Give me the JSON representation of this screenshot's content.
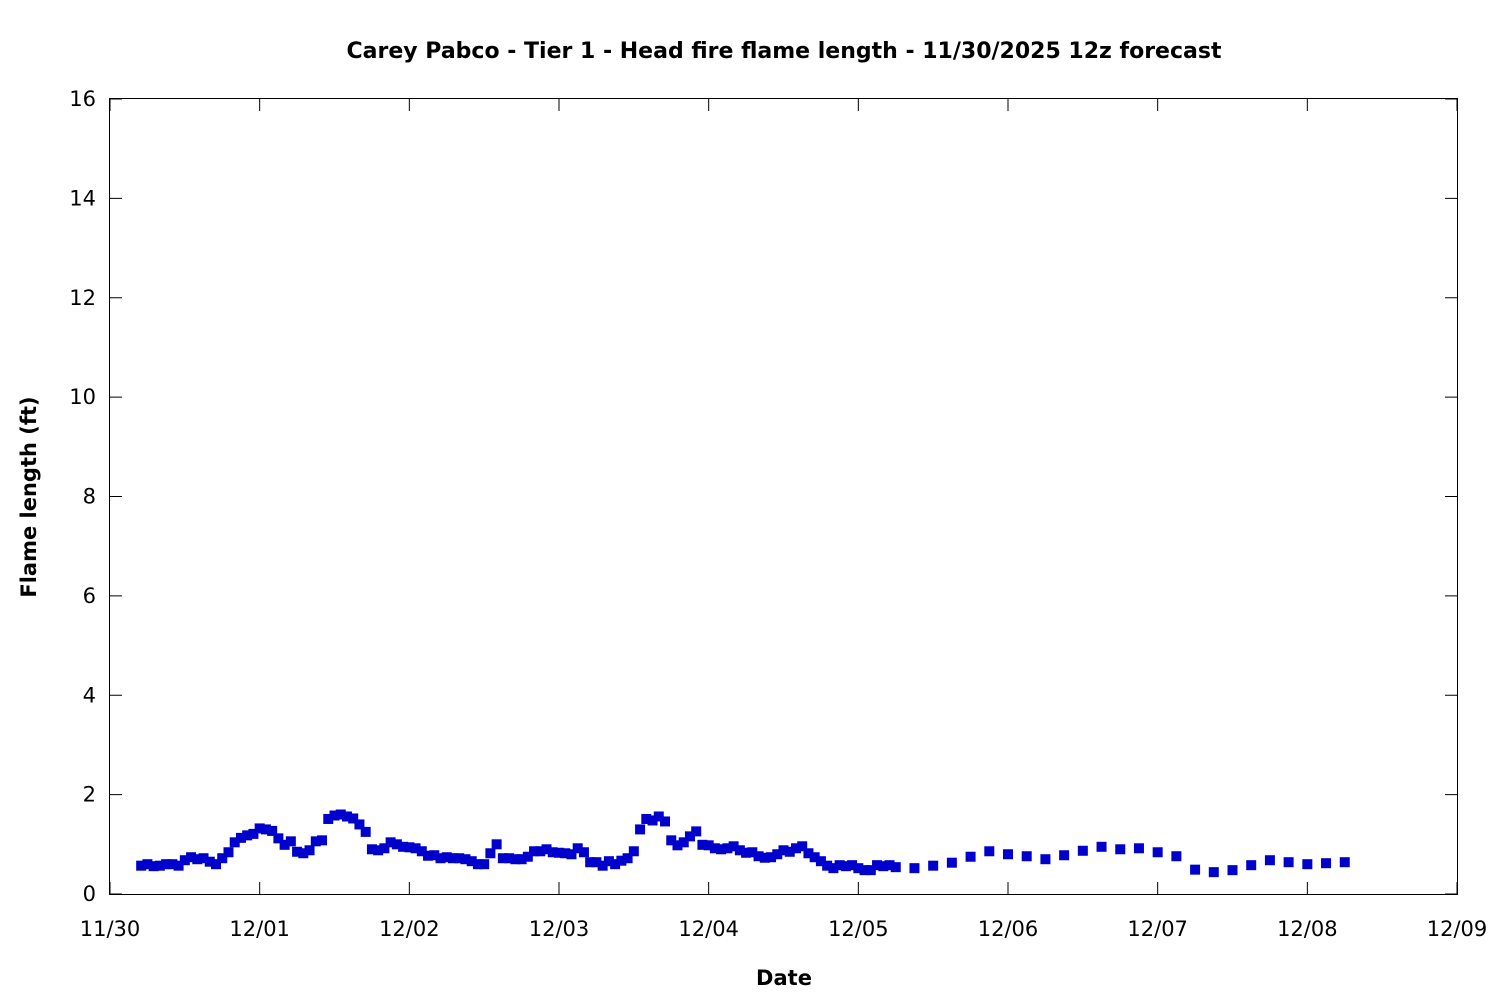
{
  "chart_data": {
    "type": "scatter",
    "title": "Carey Pabco - Tier 1 - Head fire flame length - 11/30/2025 12z forecast",
    "xlabel": "Date",
    "ylabel": "Flame length (ft)",
    "xlim": [
      "2025-11-30T00:00",
      "2025-12-09T00:00"
    ],
    "ylim": [
      0,
      16
    ],
    "x_ticks": [
      "11/30",
      "12/01",
      "12/02",
      "12/03",
      "12/04",
      "12/05",
      "12/06",
      "12/07",
      "12/08",
      "12/09"
    ],
    "y_ticks": [
      "0",
      "2",
      "4",
      "6",
      "8",
      "10",
      "12",
      "14",
      "16"
    ],
    "grid": false,
    "marker_color": "#0000cc",
    "series": [
      {
        "points": [
          [
            "2025-11-30T05:00",
            0.57
          ],
          [
            "2025-11-30T06:00",
            0.6
          ],
          [
            "2025-11-30T07:00",
            0.56
          ],
          [
            "2025-11-30T08:00",
            0.57
          ],
          [
            "2025-11-30T09:00",
            0.6
          ],
          [
            "2025-11-30T10:00",
            0.6
          ],
          [
            "2025-11-30T11:00",
            0.57
          ],
          [
            "2025-11-30T12:00",
            0.68
          ],
          [
            "2025-11-30T13:00",
            0.74
          ],
          [
            "2025-11-30T14:00",
            0.7
          ],
          [
            "2025-11-30T15:00",
            0.72
          ],
          [
            "2025-11-30T16:00",
            0.65
          ],
          [
            "2025-11-30T17:00",
            0.6
          ],
          [
            "2025-11-30T18:00",
            0.72
          ],
          [
            "2025-11-30T19:00",
            0.84
          ],
          [
            "2025-11-30T20:00",
            1.04
          ],
          [
            "2025-11-30T21:00",
            1.13
          ],
          [
            "2025-11-30T22:00",
            1.18
          ],
          [
            "2025-11-30T23:00",
            1.21
          ],
          [
            "2025-12-01T00:00",
            1.32
          ],
          [
            "2025-12-01T01:00",
            1.3
          ],
          [
            "2025-12-01T02:00",
            1.27
          ],
          [
            "2025-12-01T03:00",
            1.12
          ],
          [
            "2025-12-01T04:00",
            0.99
          ],
          [
            "2025-12-01T05:00",
            1.06
          ],
          [
            "2025-12-01T06:00",
            0.85
          ],
          [
            "2025-12-01T07:00",
            0.82
          ],
          [
            "2025-12-01T08:00",
            0.88
          ],
          [
            "2025-12-01T09:00",
            1.06
          ],
          [
            "2025-12-01T10:00",
            1.08
          ],
          [
            "2025-12-01T11:00",
            1.51
          ],
          [
            "2025-12-01T12:00",
            1.58
          ],
          [
            "2025-12-01T13:00",
            1.6
          ],
          [
            "2025-12-01T14:00",
            1.56
          ],
          [
            "2025-12-01T15:00",
            1.52
          ],
          [
            "2025-12-01T16:00",
            1.4
          ],
          [
            "2025-12-01T17:00",
            1.25
          ],
          [
            "2025-12-01T18:00",
            0.9
          ],
          [
            "2025-12-01T19:00",
            0.88
          ],
          [
            "2025-12-01T20:00",
            0.92
          ],
          [
            "2025-12-01T21:00",
            1.04
          ],
          [
            "2025-12-01T22:00",
            1.0
          ],
          [
            "2025-12-01T23:00",
            0.95
          ],
          [
            "2025-12-02T00:00",
            0.94
          ],
          [
            "2025-12-02T01:00",
            0.92
          ],
          [
            "2025-12-02T02:00",
            0.86
          ],
          [
            "2025-12-02T03:00",
            0.77
          ],
          [
            "2025-12-02T04:00",
            0.78
          ],
          [
            "2025-12-02T05:00",
            0.72
          ],
          [
            "2025-12-02T06:00",
            0.74
          ],
          [
            "2025-12-02T07:00",
            0.72
          ],
          [
            "2025-12-02T08:00",
            0.72
          ],
          [
            "2025-12-02T09:00",
            0.7
          ],
          [
            "2025-12-02T10:00",
            0.66
          ],
          [
            "2025-12-02T11:00",
            0.6
          ],
          [
            "2025-12-02T12:00",
            0.6
          ],
          [
            "2025-12-02T13:00",
            0.82
          ],
          [
            "2025-12-02T14:00",
            1.0
          ],
          [
            "2025-12-02T15:00",
            0.72
          ],
          [
            "2025-12-02T16:00",
            0.72
          ],
          [
            "2025-12-02T17:00",
            0.7
          ],
          [
            "2025-12-02T18:00",
            0.7
          ],
          [
            "2025-12-02T19:00",
            0.75
          ],
          [
            "2025-12-02T20:00",
            0.86
          ],
          [
            "2025-12-02T21:00",
            0.86
          ],
          [
            "2025-12-02T22:00",
            0.9
          ],
          [
            "2025-12-02T23:00",
            0.84
          ],
          [
            "2025-12-03T00:00",
            0.83
          ],
          [
            "2025-12-03T01:00",
            0.82
          ],
          [
            "2025-12-03T02:00",
            0.8
          ],
          [
            "2025-12-03T03:00",
            0.92
          ],
          [
            "2025-12-03T04:00",
            0.84
          ],
          [
            "2025-12-03T05:00",
            0.64
          ],
          [
            "2025-12-03T06:00",
            0.64
          ],
          [
            "2025-12-03T07:00",
            0.57
          ],
          [
            "2025-12-03T08:00",
            0.66
          ],
          [
            "2025-12-03T09:00",
            0.6
          ],
          [
            "2025-12-03T10:00",
            0.67
          ],
          [
            "2025-12-03T11:00",
            0.72
          ],
          [
            "2025-12-03T12:00",
            0.86
          ],
          [
            "2025-12-03T13:00",
            1.3
          ],
          [
            "2025-12-03T14:00",
            1.51
          ],
          [
            "2025-12-03T15:00",
            1.48
          ],
          [
            "2025-12-03T16:00",
            1.56
          ],
          [
            "2025-12-03T17:00",
            1.46
          ],
          [
            "2025-12-03T18:00",
            1.08
          ],
          [
            "2025-12-03T19:00",
            0.98
          ],
          [
            "2025-12-03T20:00",
            1.04
          ],
          [
            "2025-12-03T21:00",
            1.16
          ],
          [
            "2025-12-03T22:00",
            1.26
          ],
          [
            "2025-12-03T23:00",
            0.99
          ],
          [
            "2025-12-04T00:00",
            0.98
          ],
          [
            "2025-12-04T01:00",
            0.92
          ],
          [
            "2025-12-04T02:00",
            0.9
          ],
          [
            "2025-12-04T03:00",
            0.92
          ],
          [
            "2025-12-04T04:00",
            0.96
          ],
          [
            "2025-12-04T05:00",
            0.88
          ],
          [
            "2025-12-04T06:00",
            0.83
          ],
          [
            "2025-12-04T07:00",
            0.84
          ],
          [
            "2025-12-04T08:00",
            0.76
          ],
          [
            "2025-12-04T09:00",
            0.73
          ],
          [
            "2025-12-04T10:00",
            0.74
          ],
          [
            "2025-12-04T11:00",
            0.8
          ],
          [
            "2025-12-04T12:00",
            0.88
          ],
          [
            "2025-12-04T13:00",
            0.85
          ],
          [
            "2025-12-04T14:00",
            0.92
          ],
          [
            "2025-12-04T15:00",
            0.96
          ],
          [
            "2025-12-04T16:00",
            0.82
          ],
          [
            "2025-12-04T17:00",
            0.74
          ],
          [
            "2025-12-04T18:00",
            0.66
          ],
          [
            "2025-12-04T19:00",
            0.57
          ],
          [
            "2025-12-04T20:00",
            0.52
          ],
          [
            "2025-12-04T21:00",
            0.58
          ],
          [
            "2025-12-04T22:00",
            0.56
          ],
          [
            "2025-12-04T23:00",
            0.58
          ],
          [
            "2025-12-05T00:00",
            0.52
          ],
          [
            "2025-12-05T01:00",
            0.48
          ],
          [
            "2025-12-05T02:00",
            0.48
          ],
          [
            "2025-12-05T03:00",
            0.58
          ],
          [
            "2025-12-05T04:00",
            0.56
          ],
          [
            "2025-12-05T05:00",
            0.58
          ],
          [
            "2025-12-05T06:00",
            0.54
          ],
          [
            "2025-12-05T09:00",
            0.52
          ],
          [
            "2025-12-05T12:00",
            0.57
          ],
          [
            "2025-12-05T15:00",
            0.63
          ],
          [
            "2025-12-05T18:00",
            0.75
          ],
          [
            "2025-12-05T21:00",
            0.86
          ],
          [
            "2025-12-06T00:00",
            0.8
          ],
          [
            "2025-12-06T03:00",
            0.76
          ],
          [
            "2025-12-06T06:00",
            0.7
          ],
          [
            "2025-12-06T09:00",
            0.78
          ],
          [
            "2025-12-06T12:00",
            0.87
          ],
          [
            "2025-12-06T15:00",
            0.95
          ],
          [
            "2025-12-06T18:00",
            0.9
          ],
          [
            "2025-12-06T21:00",
            0.92
          ],
          [
            "2025-12-07T00:00",
            0.84
          ],
          [
            "2025-12-07T03:00",
            0.76
          ],
          [
            "2025-12-07T06:00",
            0.49
          ],
          [
            "2025-12-07T09:00",
            0.44
          ],
          [
            "2025-12-07T12:00",
            0.48
          ],
          [
            "2025-12-07T15:00",
            0.58
          ],
          [
            "2025-12-07T18:00",
            0.68
          ],
          [
            "2025-12-07T21:00",
            0.64
          ],
          [
            "2025-12-08T00:00",
            0.6
          ],
          [
            "2025-12-08T03:00",
            0.62
          ],
          [
            "2025-12-08T06:00",
            0.64
          ]
        ]
      }
    ]
  }
}
